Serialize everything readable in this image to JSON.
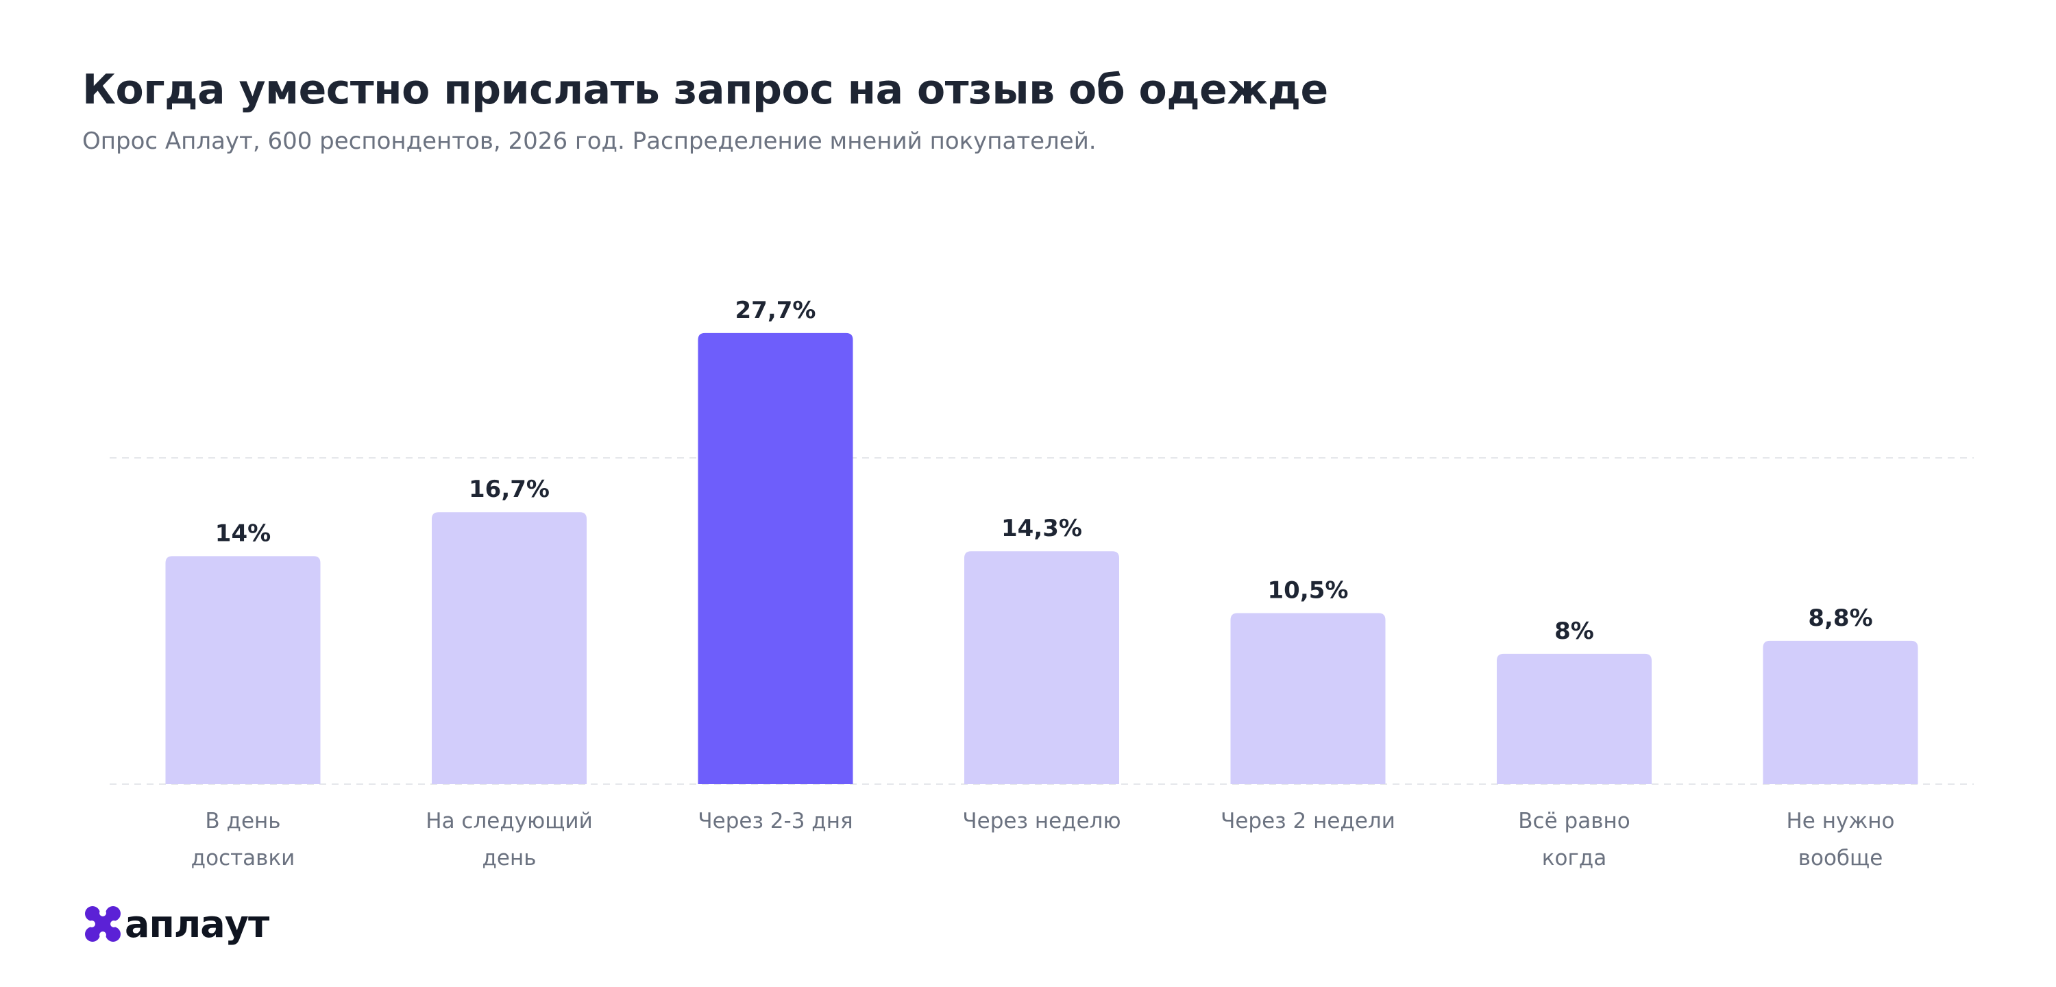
{
  "title": "Когда уместно прислать запрос на отзыв об одежде",
  "subtitle": "Опрос Аплаут, 600 респондентов, 2026 год. Распределение мнений покупателей.",
  "brand": {
    "name": "аплаут",
    "logo_icon": "aplaut-logo-icon",
    "color": "#5b21d6"
  },
  "colors": {
    "bar": "#d2cdfb",
    "bar_highlight": "#6e5efb",
    "value_label": "#1e2533",
    "category_label": "#6b7280",
    "grid": "#e5e7eb"
  },
  "chart_data": {
    "type": "bar",
    "title": "Когда уместно прислать запрос на отзыв об одежде",
    "subtitle": "Опрос Аплаут, 600 респондентов, 2026 год. Распределение мнений покупателей.",
    "xlabel": "",
    "ylabel": "",
    "ylim": [
      0,
      30
    ],
    "grid": true,
    "legend": "none",
    "categories": [
      [
        "В день",
        "доставки"
      ],
      [
        "На следующий",
        "день"
      ],
      [
        "Через 2-3 дня"
      ],
      [
        "Через неделю"
      ],
      [
        "Через 2 недели"
      ],
      [
        "Всё равно",
        "когда"
      ],
      [
        "Не нужно",
        "вообще"
      ]
    ],
    "values": [
      14,
      16.7,
      27.7,
      14.3,
      10.5,
      8,
      8.8
    ],
    "value_labels": [
      "14%",
      "16,7%",
      "27,7%",
      "14,3%",
      "10,5%",
      "8%",
      "8,8%"
    ],
    "highlight_index": 2
  }
}
